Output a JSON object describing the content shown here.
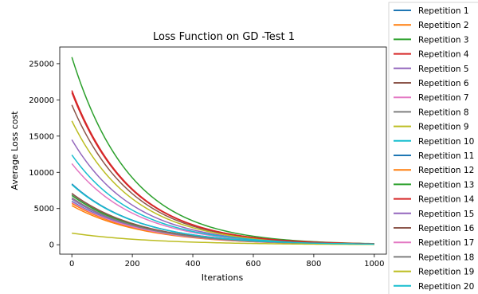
{
  "chart_data": {
    "type": "line",
    "title": "Loss Function on GD -Test 1",
    "xlabel": "Iterations",
    "ylabel": "Average Loss cost",
    "xlim": [
      -40,
      1040
    ],
    "ylim": [
      -1300,
      27300
    ],
    "x_ticks": [
      0,
      200,
      400,
      600,
      800,
      1000
    ],
    "y_ticks": [
      0,
      5000,
      10000,
      15000,
      20000,
      25000
    ],
    "grid": false,
    "legend_position": "outside right",
    "x_end": 1000,
    "series": [
      {
        "name": "Repetition 1",
        "color": "#1f77b4",
        "start": 6000,
        "end": 80
      },
      {
        "name": "Repetition 2",
        "color": "#ff7f0e",
        "start": 5400,
        "end": 75
      },
      {
        "name": "Repetition 3",
        "color": "#2ca02c",
        "start": 25900,
        "end": 150
      },
      {
        "name": "Repetition 4",
        "color": "#d62728",
        "start": 21300,
        "end": 130
      },
      {
        "name": "Repetition 5",
        "color": "#9467bd",
        "start": 14500,
        "end": 110
      },
      {
        "name": "Repetition 6",
        "color": "#8c564b",
        "start": 19300,
        "end": 125
      },
      {
        "name": "Repetition 7",
        "color": "#e377c2",
        "start": 11200,
        "end": 100
      },
      {
        "name": "Repetition 8",
        "color": "#7f7f7f",
        "start": 7000,
        "end": 85
      },
      {
        "name": "Repetition 9",
        "color": "#bcbd22",
        "start": 17100,
        "end": 120
      },
      {
        "name": "Repetition 10",
        "color": "#17becf",
        "start": 12400,
        "end": 105
      },
      {
        "name": "Repetition 11",
        "color": "#1f77b4",
        "start": 8400,
        "end": 90
      },
      {
        "name": "Repetition 12",
        "color": "#ff7f0e",
        "start": 5700,
        "end": 78
      },
      {
        "name": "Repetition 13",
        "color": "#2ca02c",
        "start": 6800,
        "end": 82
      },
      {
        "name": "Repetition 14",
        "color": "#d62728",
        "start": 21000,
        "end": 128
      },
      {
        "name": "Repetition 15",
        "color": "#9467bd",
        "start": 6300,
        "end": 80
      },
      {
        "name": "Repetition 16",
        "color": "#8c564b",
        "start": 7100,
        "end": 86
      },
      {
        "name": "Repetition 17",
        "color": "#e377c2",
        "start": 5900,
        "end": 79
      },
      {
        "name": "Repetition 18",
        "color": "#7f7f7f",
        "start": 6500,
        "end": 81
      },
      {
        "name": "Repetition 19",
        "color": "#bcbd22",
        "start": 1600,
        "end": 40
      },
      {
        "name": "Repetition 20",
        "color": "#17becf",
        "start": 8300,
        "end": 90
      }
    ]
  }
}
